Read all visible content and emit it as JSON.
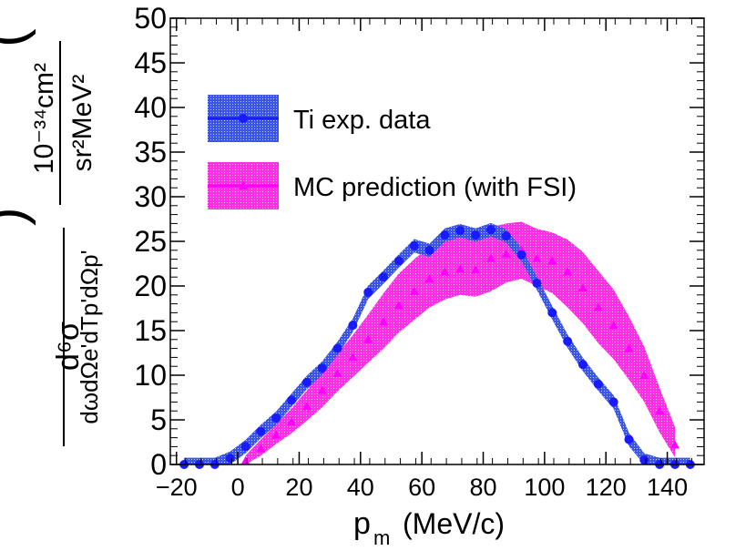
{
  "chart_data": {
    "type": "line",
    "xlabel": "p",
    "xlabel_sub": "m",
    "xlabel_unit": "(MeV/c)",
    "ylabel": {
      "numerator": "d⁶σ",
      "denominator": "dωdΩe'dTp'dΩp'",
      "unit_numerator": "10⁻³⁴cm²",
      "unit_denominator": "sr²MeV²"
    },
    "xlim": [
      -22,
      152
    ],
    "ylim": [
      0,
      50
    ],
    "xticks": [
      -20,
      0,
      20,
      40,
      60,
      80,
      100,
      120,
      140
    ],
    "xtick_labels": [
      "−20",
      "0",
      "20",
      "40",
      "60",
      "80",
      "100",
      "120",
      "140"
    ],
    "yticks": [
      0,
      5,
      10,
      15,
      20,
      25,
      30,
      35,
      40,
      45,
      50
    ],
    "ytick_labels": [
      "0",
      "5",
      "10",
      "15",
      "20",
      "25",
      "30",
      "35",
      "40",
      "45",
      "50"
    ],
    "legend": {
      "placement": "top-left"
    },
    "series": [
      {
        "name": "Ti exp. data",
        "color": "#1a1aff",
        "band_color": "#1f3bd6",
        "marker": "circle",
        "x": [
          -17.5,
          -12.5,
          -7.5,
          -2.5,
          2.5,
          7.5,
          12.5,
          17.5,
          22.5,
          27.5,
          32.5,
          37.5,
          42.5,
          47.5,
          52.5,
          57.5,
          62.5,
          67.5,
          72.5,
          77.5,
          82.5,
          87.5,
          92.5,
          97.5,
          102.5,
          107.5,
          112.5,
          117.5,
          122.5,
          127.5,
          132.5,
          137.5,
          142.5,
          147.5
        ],
        "y": [
          0,
          0,
          0,
          0.7,
          2.0,
          3.7,
          5.2,
          7.2,
          9.2,
          10.8,
          13.0,
          15.6,
          19.3,
          21.0,
          22.8,
          24.5,
          24.0,
          25.7,
          26.2,
          25.7,
          26.3,
          25.6,
          23.5,
          20.3,
          17.0,
          13.8,
          11.2,
          9.0,
          7.0,
          2.8,
          0.5,
          0,
          0,
          0
        ],
        "band_half_width": 0.75
      },
      {
        "name": "MC prediction (with FSI)",
        "color": "#ff00ff",
        "band_color": "#ff33dd",
        "marker": "triangle",
        "x": [
          2.5,
          7.5,
          12.5,
          17.5,
          22.5,
          27.5,
          32.5,
          37.5,
          42.5,
          47.5,
          52.5,
          57.5,
          62.5,
          67.5,
          72.5,
          77.5,
          82.5,
          87.5,
          92.5,
          97.5,
          102.5,
          107.5,
          112.5,
          117.5,
          122.5,
          127.5,
          132.5,
          137.5,
          142.5
        ],
        "y": [
          0.4,
          1.8,
          3.3,
          4.8,
          6.5,
          8.3,
          10.2,
          12.0,
          14.0,
          16.0,
          17.8,
          19.4,
          20.8,
          21.6,
          21.9,
          21.8,
          23.1,
          23.6,
          24.0,
          23.1,
          22.8,
          21.6,
          19.8,
          17.6,
          15.6,
          13.0,
          10.0,
          6.0,
          2.2
        ],
        "y_low": [
          0,
          1.0,
          2.3,
          3.5,
          4.9,
          6.4,
          8.2,
          9.8,
          11.4,
          13.0,
          14.8,
          16.2,
          17.6,
          18.5,
          19.0,
          18.8,
          19.4,
          20.4,
          20.8,
          20.0,
          19.2,
          17.6,
          15.8,
          13.6,
          11.8,
          9.5,
          7.0,
          3.6,
          0.8
        ],
        "y_high": [
          1.0,
          2.8,
          4.5,
          6.3,
          8.3,
          10.4,
          12.4,
          14.5,
          16.8,
          19.2,
          21.4,
          23.0,
          24.4,
          25.4,
          25.8,
          25.6,
          26.6,
          27.0,
          27.2,
          26.4,
          26.0,
          25.2,
          23.8,
          21.7,
          19.6,
          16.6,
          13.2,
          8.6,
          4.2
        ]
      }
    ]
  }
}
